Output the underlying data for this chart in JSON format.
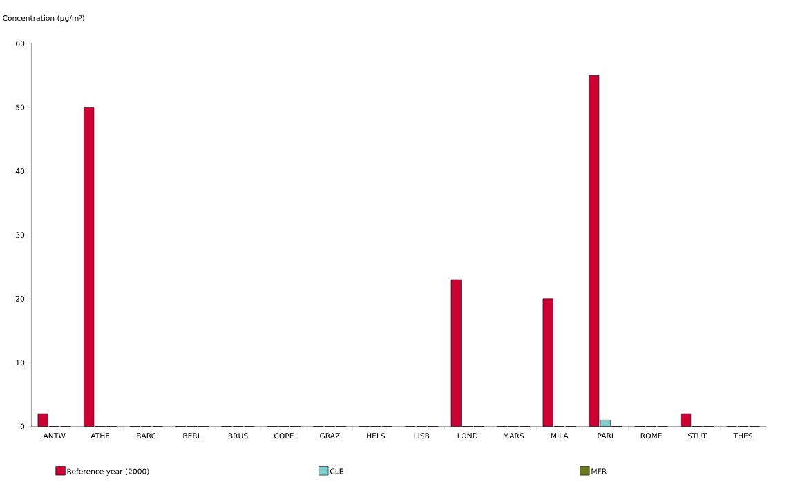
{
  "chart_data": {
    "type": "bar",
    "ylabel": "Concentration (µg/m³)",
    "categories": [
      "ANTW",
      "ATHE",
      "BARC",
      "BERL",
      "BRUS",
      "COPE",
      "GRAZ",
      "HELS",
      "LISB",
      "LOND",
      "MARS",
      "MILA",
      "PARI",
      "ROME",
      "STUT",
      "THES"
    ],
    "series": [
      {
        "name": "Reference year (2000)",
        "color": "#cc0033",
        "values": [
          2,
          50,
          0,
          0,
          0,
          0,
          0,
          0,
          0,
          23,
          0,
          20,
          55,
          0,
          2,
          0
        ]
      },
      {
        "name": "CLE",
        "color": "#80cccc",
        "values": [
          0,
          0,
          0,
          0,
          0,
          0,
          0,
          0,
          0,
          0,
          0,
          0,
          1,
          0,
          0,
          0
        ]
      },
      {
        "name": "MFR",
        "color": "#6b7a1f",
        "values": [
          0,
          0,
          0,
          0,
          0,
          0,
          0,
          0,
          0,
          0,
          0,
          0,
          0,
          0,
          0,
          0
        ]
      }
    ],
    "ylim": [
      0,
      60
    ],
    "yticks": [
      0,
      10,
      20,
      30,
      40,
      50,
      60
    ],
    "grid": false,
    "legend": "bottom"
  }
}
